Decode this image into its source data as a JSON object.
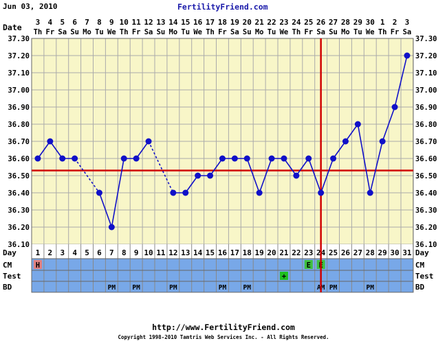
{
  "header": {
    "date": "Jun 03, 2010",
    "site": "FertilityFriend.com"
  },
  "footer": {
    "url": "http://www.FertilityFriend.com",
    "copyright": "Copyright 1998-2010 Tamtris Web Services Inc. - All Rights Reserved."
  },
  "row_labels": {
    "date": "Date",
    "day": "Day",
    "cm": "CM",
    "test": "Test",
    "bd": "BD"
  },
  "colors": {
    "grid_bg": "#f8f6c8",
    "grid_line": "#aaaaaa",
    "line": "#1010c8",
    "coverline": "#d00000",
    "strip_bg": "#78a8e8",
    "day_bg": "#ffffff",
    "cm_h": "#e08080",
    "cm_e": "#40c040",
    "test_plus": "#20c020"
  },
  "chart_data": {
    "type": "line",
    "dates": [
      {
        "n": "3",
        "d": "Th"
      },
      {
        "n": "4",
        "d": "Fr"
      },
      {
        "n": "5",
        "d": "Sa"
      },
      {
        "n": "6",
        "d": "Su"
      },
      {
        "n": "7",
        "d": "Mo"
      },
      {
        "n": "8",
        "d": "Tu"
      },
      {
        "n": "9",
        "d": "We"
      },
      {
        "n": "10",
        "d": "Th"
      },
      {
        "n": "11",
        "d": "Fr"
      },
      {
        "n": "12",
        "d": "Sa"
      },
      {
        "n": "13",
        "d": "Su"
      },
      {
        "n": "14",
        "d": "Mo"
      },
      {
        "n": "15",
        "d": "Tu"
      },
      {
        "n": "16",
        "d": "We"
      },
      {
        "n": "17",
        "d": "Th"
      },
      {
        "n": "18",
        "d": "Fr"
      },
      {
        "n": "19",
        "d": "Sa"
      },
      {
        "n": "20",
        "d": "Su"
      },
      {
        "n": "21",
        "d": "Mo"
      },
      {
        "n": "22",
        "d": "Tu"
      },
      {
        "n": "23",
        "d": "We"
      },
      {
        "n": "24",
        "d": "Th"
      },
      {
        "n": "25",
        "d": "Fr"
      },
      {
        "n": "26",
        "d": "Sa"
      },
      {
        "n": "27",
        "d": "Su"
      },
      {
        "n": "28",
        "d": "Mo"
      },
      {
        "n": "29",
        "d": "Tu"
      },
      {
        "n": "30",
        "d": "We"
      },
      {
        "n": "1",
        "d": "Th"
      },
      {
        "n": "2",
        "d": "Fr"
      },
      {
        "n": "3",
        "d": "Sa"
      }
    ],
    "days": [
      1,
      2,
      3,
      4,
      5,
      6,
      7,
      8,
      9,
      10,
      11,
      12,
      13,
      14,
      15,
      16,
      17,
      18,
      19,
      20,
      21,
      22,
      23,
      24,
      25,
      26,
      27,
      28,
      29,
      30,
      31
    ],
    "temps": [
      36.6,
      36.7,
      36.6,
      36.6,
      null,
      36.4,
      36.2,
      36.6,
      36.6,
      36.7,
      null,
      36.4,
      36.4,
      36.5,
      36.5,
      36.6,
      36.6,
      36.6,
      36.4,
      36.6,
      36.6,
      36.5,
      36.6,
      36.4,
      36.6,
      36.7,
      36.8,
      36.4,
      36.7,
      36.9,
      37.2
    ],
    "dashed_segments": [
      [
        4,
        6
      ],
      [
        10,
        12
      ]
    ],
    "ylim": [
      36.1,
      37.3
    ],
    "ytick_step": 0.1,
    "ytick_labels": [
      "36.10",
      "36.20",
      "36.30",
      "36.40",
      "36.50",
      "36.60",
      "36.70",
      "36.80",
      "36.90",
      "37.00",
      "37.10",
      "37.20",
      "37.30"
    ],
    "coverline": 36.53,
    "ovulation_day": 24,
    "cm": [
      {
        "day": 1,
        "label": "H"
      },
      {
        "day": 23,
        "label": "E"
      },
      {
        "day": 24,
        "label": "E"
      }
    ],
    "test": [
      {
        "day": 21,
        "label": "+"
      }
    ],
    "bd": [
      {
        "day": 7,
        "label": "PM"
      },
      {
        "day": 9,
        "label": "PM"
      },
      {
        "day": 12,
        "label": "PM"
      },
      {
        "day": 16,
        "label": "PM"
      },
      {
        "day": 18,
        "label": "PM"
      },
      {
        "day": 24,
        "label": "AM"
      },
      {
        "day": 25,
        "label": "PM"
      },
      {
        "day": 28,
        "label": "PM"
      }
    ],
    "grid": true
  }
}
